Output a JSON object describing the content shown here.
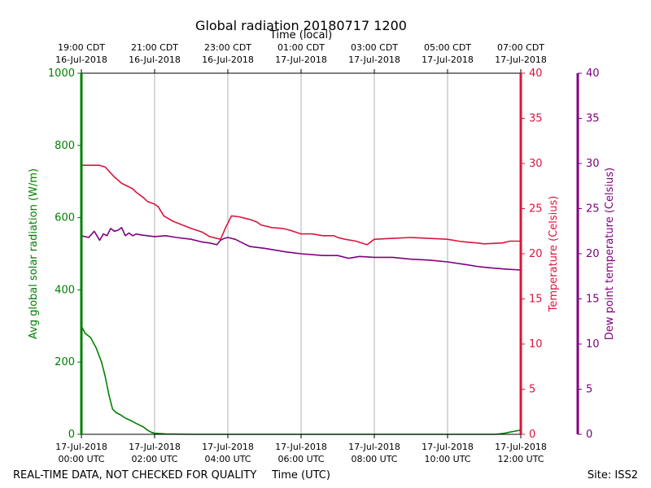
{
  "chart_data": {
    "type": "line",
    "title": "Global radiation 20180717 1200",
    "top_axis_label": "Time (local)",
    "xlabel": "Time (UTC)",
    "footer_left": "REAL-TIME DATA, NOT CHECKED FOR QUALITY",
    "footer_right": "Site: ISS2",
    "x_range_hours_utc": [
      0,
      12
    ],
    "x_ticks": [
      {
        "hour": 0,
        "utc_date": "17-Jul-2018",
        "utc_time": "00:00 UTC",
        "local_time": "19:00 CDT",
        "local_date": "16-Jul-2018"
      },
      {
        "hour": 2,
        "utc_date": "17-Jul-2018",
        "utc_time": "02:00 UTC",
        "local_time": "21:00 CDT",
        "local_date": "16-Jul-2018"
      },
      {
        "hour": 4,
        "utc_date": "17-Jul-2018",
        "utc_time": "04:00 UTC",
        "local_time": "23:00 CDT",
        "local_date": "16-Jul-2018"
      },
      {
        "hour": 6,
        "utc_date": "17-Jul-2018",
        "utc_time": "06:00 UTC",
        "local_time": "01:00 CDT",
        "local_date": "17-Jul-2018"
      },
      {
        "hour": 8,
        "utc_date": "17-Jul-2018",
        "utc_time": "08:00 UTC",
        "local_time": "03:00 CDT",
        "local_date": "17-Jul-2018"
      },
      {
        "hour": 10,
        "utc_date": "17-Jul-2018",
        "utc_time": "10:00 UTC",
        "local_time": "05:00 CDT",
        "local_date": "17-Jul-2018"
      },
      {
        "hour": 12,
        "utc_date": "17-Jul-2018",
        "utc_time": "12:00 UTC",
        "local_time": "07:00 CDT",
        "local_date": "17-Jul-2018"
      }
    ],
    "axes": {
      "radiation": {
        "label": "Avg global solar radiation (W/m)",
        "range": [
          0,
          1000
        ],
        "ticks": [
          0,
          200,
          400,
          600,
          800,
          1000
        ],
        "color": "#008000"
      },
      "temperature": {
        "label": "Temperature (Celsius)",
        "range": [
          0,
          40
        ],
        "ticks": [
          0,
          5,
          10,
          15,
          20,
          25,
          30,
          35,
          40
        ],
        "color": "#dc143c"
      },
      "dewpoint": {
        "label": "Dew point temperature (Celsius)",
        "range": [
          0,
          40
        ],
        "ticks": [
          0,
          5,
          10,
          15,
          20,
          25,
          30,
          35,
          40
        ],
        "color": "#800080"
      }
    },
    "grid": "vertical",
    "series": [
      {
        "name": "radiation",
        "axis": "radiation",
        "x": [
          0,
          0.1,
          0.25,
          0.4,
          0.55,
          0.65,
          0.75,
          0.85,
          0.95,
          1.05,
          1.2,
          1.35,
          1.5,
          1.7,
          1.8,
          1.9,
          2.0,
          2.3,
          3.0,
          4.0,
          6.0,
          8.0,
          10.0,
          11.3,
          11.5,
          11.7,
          11.9,
          12.0
        ],
        "values": [
          300,
          280,
          268,
          240,
          200,
          160,
          110,
          70,
          60,
          55,
          45,
          38,
          30,
          20,
          12,
          6,
          3,
          1,
          0,
          0,
          0,
          0,
          0,
          0,
          2,
          6,
          10,
          12
        ]
      },
      {
        "name": "temperature",
        "axis": "temperature",
        "x": [
          0,
          0.5,
          0.65,
          0.9,
          1.1,
          1.4,
          1.5,
          1.7,
          1.8,
          2.0,
          2.1,
          2.25,
          2.5,
          2.75,
          3.0,
          3.3,
          3.5,
          3.8,
          3.95,
          4.1,
          4.3,
          4.6,
          4.8,
          4.9,
          5.2,
          5.5,
          5.7,
          6.0,
          6.3,
          6.6,
          6.9,
          7.0,
          7.2,
          7.5,
          7.8,
          8.0,
          8.5,
          9.0,
          9.5,
          10.0,
          10.3,
          10.5,
          10.8,
          11.0,
          11.5,
          11.7,
          12.0
        ],
        "values": [
          29.8,
          29.8,
          29.6,
          28.5,
          27.8,
          27.2,
          26.8,
          26.2,
          25.8,
          25.5,
          25.2,
          24.2,
          23.6,
          23.2,
          22.8,
          22.4,
          21.9,
          21.6,
          23.0,
          24.2,
          24.1,
          23.8,
          23.5,
          23.2,
          22.9,
          22.8,
          22.6,
          22.2,
          22.2,
          22.0,
          22.0,
          21.8,
          21.6,
          21.4,
          21.0,
          21.6,
          21.7,
          21.8,
          21.7,
          21.6,
          21.4,
          21.3,
          21.2,
          21.1,
          21.2,
          21.4,
          21.4
        ]
      },
      {
        "name": "dewpoint",
        "axis": "dewpoint",
        "x": [
          0,
          0.2,
          0.35,
          0.5,
          0.6,
          0.7,
          0.8,
          0.9,
          1.0,
          1.1,
          1.2,
          1.3,
          1.4,
          1.5,
          1.6,
          1.8,
          2.0,
          2.3,
          2.6,
          3.0,
          3.3,
          3.5,
          3.7,
          3.8,
          3.9,
          4.0,
          4.2,
          4.4,
          4.6,
          4.8,
          5.0,
          5.3,
          5.6,
          6.0,
          6.3,
          6.6,
          7.0,
          7.3,
          7.6,
          8.0,
          8.5,
          9.0,
          9.5,
          10.0,
          10.5,
          10.8,
          11.0,
          11.3,
          11.6,
          12.0
        ],
        "values": [
          22.0,
          21.8,
          22.5,
          21.5,
          22.2,
          22.0,
          22.8,
          22.5,
          22.6,
          22.9,
          22.0,
          22.3,
          22.0,
          22.2,
          22.1,
          22.0,
          21.9,
          22.0,
          21.8,
          21.6,
          21.3,
          21.2,
          21.0,
          21.5,
          21.7,
          21.8,
          21.6,
          21.2,
          20.8,
          20.7,
          20.6,
          20.4,
          20.2,
          20.0,
          19.9,
          19.8,
          19.8,
          19.5,
          19.7,
          19.6,
          19.6,
          19.4,
          19.3,
          19.1,
          18.8,
          18.6,
          18.5,
          18.4,
          18.3,
          18.2
        ]
      }
    ]
  }
}
